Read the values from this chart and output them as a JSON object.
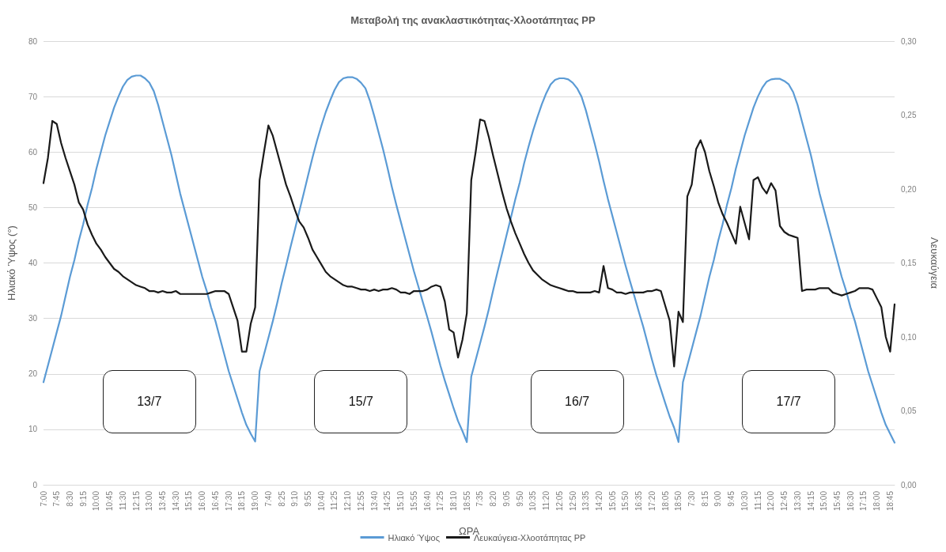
{
  "chart_data": {
    "type": "line",
    "title": "Μεταβολή της ανακλαστικότητας-Χλοοτάπητας PP",
    "xlabel": "ΩΡΑ",
    "ylabel": "Ηλιακό Ύψος (°)",
    "y2label": "Λευκαύγεια",
    "categories": [
      "7:00",
      null,
      null,
      "7:45",
      null,
      null,
      "8:30",
      null,
      null,
      "9:15",
      null,
      null,
      "10:00",
      null,
      null,
      "10:45",
      null,
      null,
      "11:30",
      null,
      null,
      "12:15",
      null,
      null,
      "13:00",
      null,
      null,
      "13:45",
      null,
      null,
      "14:30",
      null,
      null,
      "15:15",
      null,
      null,
      "16:00",
      null,
      null,
      "16:45",
      null,
      null,
      "17:30",
      null,
      null,
      "18:15",
      null,
      null,
      "19:00",
      null,
      null,
      "7:40",
      null,
      null,
      "8:25",
      null,
      null,
      "9:10",
      null,
      null,
      "9:55",
      null,
      null,
      "10:40",
      null,
      null,
      "11:25",
      null,
      null,
      "12:10",
      null,
      null,
      "12:55",
      null,
      null,
      "13:40",
      null,
      null,
      "14:25",
      null,
      null,
      "15:10",
      null,
      null,
      "15:55",
      null,
      null,
      "16:40",
      null,
      null,
      "17:25",
      null,
      null,
      "18:10",
      null,
      null,
      "18:55",
      null,
      null,
      "7:35",
      null,
      null,
      "8:20",
      null,
      null,
      "9:05",
      null,
      null,
      "9:50",
      null,
      null,
      "10:35",
      null,
      null,
      "11:20",
      null,
      null,
      "12:05",
      null,
      null,
      "12:50",
      null,
      null,
      "13:35",
      null,
      null,
      "14:20",
      null,
      null,
      "15:05",
      null,
      null,
      "15:50",
      null,
      null,
      "16:35",
      null,
      null,
      "17:20",
      null,
      null,
      "18:05",
      null,
      null,
      "18:50",
      null,
      null,
      "7:30",
      null,
      null,
      "8:15",
      null,
      null,
      "9:00",
      null,
      null,
      "9:45",
      null,
      null,
      "10:30",
      null,
      null,
      "11:15",
      null,
      null,
      "12:00",
      null,
      null,
      "12:45",
      null,
      null,
      "13:30",
      null,
      null,
      "14:15",
      null,
      null,
      "15:00",
      null,
      null,
      "15:45",
      null,
      null,
      "16:30",
      null,
      null,
      "17:15",
      null,
      null,
      "18:00",
      null,
      null,
      "18:45",
      null
    ],
    "series": [
      {
        "name": "Ηλιακό Ύψος",
        "color": "#5b9bd5",
        "values": [
          18.5,
          21.5,
          24.5,
          27.5,
          30.5,
          34,
          37.5,
          40.5,
          44,
          47,
          50.5,
          53.5,
          57,
          60,
          63,
          65.5,
          68,
          70,
          71.8,
          73,
          73.6,
          73.8,
          73.8,
          73.3,
          72.5,
          71,
          68.5,
          65.5,
          62.5,
          59.5,
          56,
          52.5,
          49.5,
          46.5,
          43.5,
          40.5,
          37.5,
          35,
          32,
          29.5,
          26.5,
          23.5,
          20.5,
          18,
          15.5,
          13,
          10.8,
          9.2,
          7.8,
          20.5,
          23.5,
          26.5,
          29.5,
          32.8,
          36.3,
          39.5,
          42.8,
          46,
          49.3,
          52.5,
          55.8,
          59,
          62,
          64.7,
          67.2,
          69.3,
          71.2,
          72.6,
          73.3,
          73.5,
          73.5,
          73.2,
          72.5,
          71.5,
          69.3,
          66.5,
          63.5,
          60.5,
          57.2,
          53.7,
          50.5,
          47.5,
          44.5,
          41.5,
          38.5,
          35.8,
          33,
          30.3,
          27.5,
          24.5,
          21.5,
          18.8,
          16.3,
          13.8,
          11.5,
          9.7,
          7.7,
          19.5,
          22.5,
          25.5,
          28.5,
          31.7,
          35.2,
          38.5,
          41.7,
          45,
          48.2,
          51.5,
          54.5,
          58,
          61,
          63.8,
          66.3,
          68.6,
          70.6,
          72.2,
          73,
          73.3,
          73.3,
          73.1,
          72.5,
          71.5,
          70,
          67.5,
          64.5,
          61.5,
          58.3,
          54.8,
          51.5,
          48.5,
          45.5,
          42.5,
          39.5,
          36.7,
          34,
          31.2,
          28.5,
          25.5,
          22.5,
          19.7,
          17.2,
          14.7,
          12.3,
          10.3,
          7.7,
          18.5,
          21.5,
          24.5,
          27.5,
          30.5,
          34,
          37.5,
          40.5,
          44,
          47,
          50.5,
          53.5,
          57,
          60,
          63,
          65.5,
          68,
          70,
          71.6,
          72.7,
          73.1,
          73.2,
          73.2,
          72.8,
          72.2,
          70.8,
          68.5,
          65.5,
          62.5,
          59.5,
          56,
          52.5,
          49.5,
          46.5,
          43.5,
          40.5,
          37.5,
          35,
          32,
          29.5,
          26.5,
          23.5,
          20.5,
          18,
          15.5,
          13,
          10.8,
          9.2,
          7.6
        ]
      },
      {
        "name": "Λευκαύγεια-Χλοοτάπητας PP",
        "color": "#1a1a1a",
        "axis": "y2",
        "values": [
          0.204,
          0.221,
          0.246,
          0.244,
          0.231,
          0.221,
          0.212,
          0.203,
          0.191,
          0.186,
          0.176,
          0.169,
          0.163,
          0.159,
          0.154,
          0.15,
          0.146,
          0.144,
          0.141,
          0.139,
          0.137,
          0.135,
          0.134,
          0.133,
          0.131,
          0.131,
          0.13,
          0.131,
          0.13,
          0.13,
          0.131,
          0.129,
          0.129,
          0.129,
          0.129,
          0.129,
          0.129,
          0.129,
          0.13,
          0.131,
          0.131,
          0.131,
          0.129,
          0.12,
          0.111,
          0.09,
          0.09,
          0.109,
          0.12,
          0.206,
          0.225,
          0.243,
          0.236,
          0.225,
          0.214,
          0.203,
          0.195,
          0.186,
          0.178,
          0.174,
          0.167,
          0.159,
          0.154,
          0.149,
          0.144,
          0.141,
          0.139,
          0.137,
          0.135,
          0.134,
          0.134,
          0.133,
          0.132,
          0.132,
          0.131,
          0.132,
          0.131,
          0.132,
          0.132,
          0.133,
          0.132,
          0.13,
          0.13,
          0.129,
          0.131,
          0.131,
          0.131,
          0.132,
          0.134,
          0.135,
          0.134,
          0.124,
          0.105,
          0.103,
          0.086,
          0.098,
          0.116,
          0.206,
          0.225,
          0.247,
          0.246,
          0.235,
          0.222,
          0.21,
          0.198,
          0.187,
          0.178,
          0.17,
          0.163,
          0.156,
          0.15,
          0.145,
          0.142,
          0.139,
          0.137,
          0.135,
          0.134,
          0.133,
          0.132,
          0.131,
          0.131,
          0.13,
          0.13,
          0.13,
          0.13,
          0.131,
          0.13,
          0.148,
          0.133,
          0.132,
          0.13,
          0.13,
          0.129,
          0.13,
          0.13,
          0.13,
          0.13,
          0.131,
          0.131,
          0.132,
          0.131,
          0.121,
          0.111,
          0.08,
          0.117,
          0.11,
          0.195,
          0.203,
          0.227,
          0.233,
          0.225,
          0.212,
          0.202,
          0.191,
          0.183,
          0.177,
          0.17,
          0.163,
          0.188,
          0.177,
          0.166,
          0.206,
          0.208,
          0.201,
          0.197,
          0.204,
          0.199,
          0.175,
          0.171,
          0.169,
          0.168,
          0.167,
          0.131,
          0.132,
          0.132,
          0.132,
          0.133,
          0.133,
          0.133,
          0.13,
          0.129,
          0.128,
          0.129,
          0.13,
          0.131,
          0.133,
          0.133,
          0.133,
          0.132,
          0.126,
          0.12,
          0.1,
          0.09,
          0.122
        ]
      }
    ],
    "ylim": [
      0,
      80
    ],
    "yticks": [
      0,
      10,
      20,
      30,
      40,
      50,
      60,
      70,
      80
    ],
    "y2lim": [
      0,
      0.3
    ],
    "y2ticks": [
      {
        "value": 0,
        "label": "0,00"
      },
      {
        "value": 0.05,
        "label": "0,05"
      },
      {
        "value": 0.1,
        "label": "0,10"
      },
      {
        "value": 0.15,
        "label": "0,15"
      },
      {
        "value": 0.2,
        "label": "0,20"
      },
      {
        "value": 0.25,
        "label": "0,25"
      },
      {
        "value": 0.3,
        "label": "0,30"
      }
    ],
    "annotations": [
      "13/7",
      "15/7",
      "16/7",
      "17/7"
    ],
    "grid": "y",
    "legend": "bottom",
    "marker": "none",
    "line_style": "solid"
  }
}
